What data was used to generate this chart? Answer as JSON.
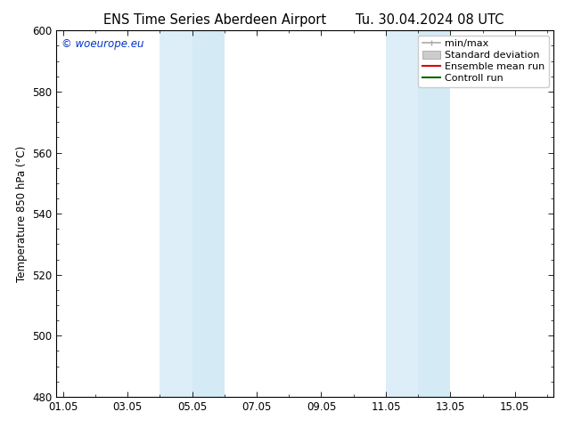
{
  "title_left": "ENS Time Series Aberdeen Airport",
  "title_right": "Tu. 30.04.2024 08 UTC",
  "ylabel": "Temperature 850 hPa (°C)",
  "ylim": [
    480,
    600
  ],
  "yticks": [
    480,
    500,
    520,
    540,
    560,
    580,
    600
  ],
  "xtick_labels": [
    "01.05",
    "03.05",
    "05.05",
    "07.05",
    "09.05",
    "11.05",
    "13.05",
    "15.05"
  ],
  "xtick_positions": [
    0,
    2,
    4,
    6,
    8,
    10,
    12,
    14
  ],
  "xlim": [
    -0.2,
    15.2
  ],
  "shaded_bands": [
    {
      "x_start": 3.0,
      "x_end": 4.0,
      "color": "#ddeef8"
    },
    {
      "x_start": 4.0,
      "x_end": 5.0,
      "color": "#d4eaf5"
    },
    {
      "x_start": 10.0,
      "x_end": 11.0,
      "color": "#ddeef8"
    },
    {
      "x_start": 11.0,
      "x_end": 12.0,
      "color": "#d4eaf5"
    }
  ],
  "watermark_text": "© woeurope.eu",
  "watermark_color": "#0033cc",
  "legend_items": [
    {
      "label": "min/max",
      "color": "#aaaaaa",
      "lw": 1.2
    },
    {
      "label": "Standard deviation",
      "color": "#cccccc",
      "lw": 5
    },
    {
      "label": "Ensemble mean run",
      "color": "#dd0000",
      "lw": 1.5
    },
    {
      "label": "Controll run",
      "color": "#006600",
      "lw": 1.5
    }
  ],
  "bg_color": "#ffffff",
  "font_size": 8.5,
  "title_font_size": 10.5
}
